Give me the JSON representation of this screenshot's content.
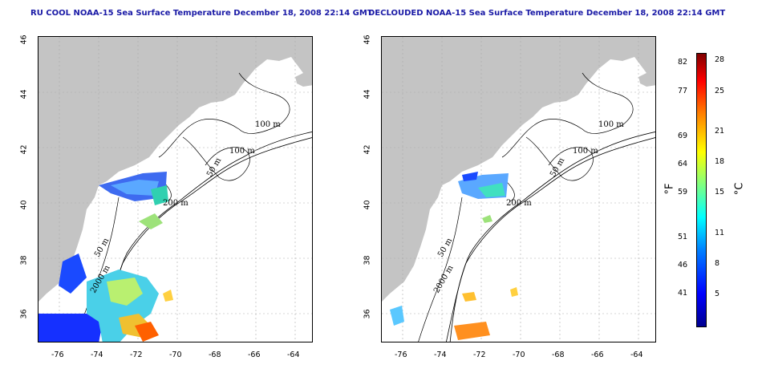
{
  "maps": [
    {
      "title": "RU COOL NOAA-15 Sea Surface Temperature December 18, 2008 22:14 GMT"
    },
    {
      "title": "DECLOUDED NOAA-15 Sea Surface Temperature December 18, 2008 22:14 GMT"
    }
  ],
  "y_ticks": [
    "46",
    "44",
    "42",
    "40",
    "38",
    "36"
  ],
  "x_ticks": [
    "-76",
    "-74",
    "-72",
    "-70",
    "-68",
    "-66",
    "-64"
  ],
  "contour_labels": {
    "c100a": "100 m",
    "c100b": "100 m",
    "c50a": "50 m",
    "c200": "200 m",
    "c50b": "50 m",
    "c2000": "2000 m"
  },
  "colorbar": {
    "unit_f": "°F",
    "unit_c": "°C",
    "f_labels": [
      "82",
      "77",
      "69",
      "64",
      "59",
      "51",
      "46",
      "41"
    ],
    "c_labels": [
      "28",
      "25",
      "21",
      "18",
      "15",
      "11",
      "8",
      "5"
    ],
    "colors": [
      "#00008f",
      "#0000ff",
      "#0080ff",
      "#00ffff",
      "#80ff80",
      "#ffff00",
      "#ff8000",
      "#ff0000",
      "#800000"
    ]
  }
}
